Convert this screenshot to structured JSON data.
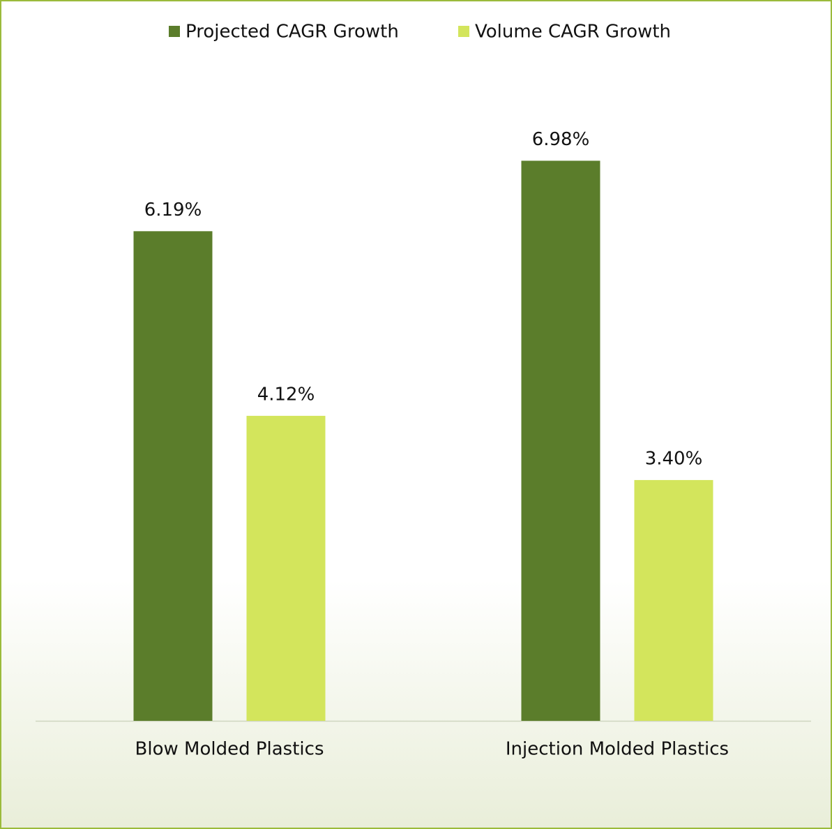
{
  "chart_data": {
    "type": "bar",
    "categories": [
      "Blow Molded Plastics",
      "Injection Molded Plastics"
    ],
    "series": [
      {
        "name": "Projected CAGR Growth",
        "color": "#5b7d2b",
        "values": [
          6.19,
          6.98
        ],
        "value_labels": [
          "6.19%",
          "6.98%"
        ]
      },
      {
        "name": "Volume CAGR Growth",
        "color": "#d3e55c",
        "values": [
          4.12,
          3.4
        ],
        "value_labels": [
          "4.12%",
          "3.40%"
        ]
      }
    ],
    "ylim": [
      0.7,
      8
    ],
    "legend": "top"
  }
}
